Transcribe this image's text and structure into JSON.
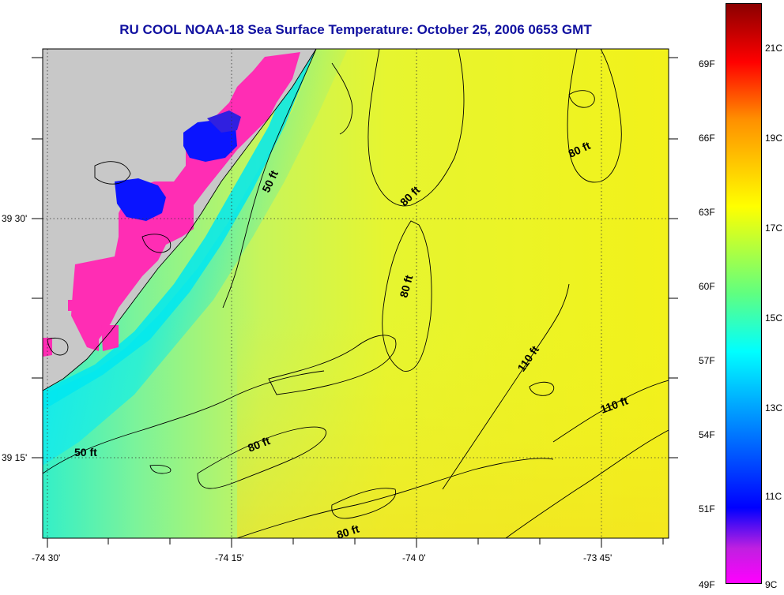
{
  "title": "RU COOL  NOAA-18  Sea Surface Temperature:  October 25, 2006 0653 GMT",
  "map": {
    "lat_labels": [
      {
        "text": "39 30'",
        "lat_min": 30
      },
      {
        "text": "39 15'",
        "lat_min": 15
      }
    ],
    "lon_labels": [
      {
        "text": "-74 30'",
        "lon_min": -30
      },
      {
        "text": "-74 15'",
        "lon_min": -15
      },
      {
        "text": "-74 0'",
        "lon_min": 0
      },
      {
        "text": "-73 45'",
        "lon_min": 15
      }
    ],
    "contour_labels": [
      {
        "text": "50 ft",
        "depth": 50
      },
      {
        "text": "50 ft",
        "depth": 50
      },
      {
        "text": "80 ft",
        "depth": 80
      },
      {
        "text": "80 ft",
        "depth": 80
      },
      {
        "text": "80 ft",
        "depth": 80
      },
      {
        "text": "80 ft",
        "depth": 80
      },
      {
        "text": "80 ft",
        "depth": 80
      },
      {
        "text": "110 ft",
        "depth": 110
      },
      {
        "text": "110 ft",
        "depth": 110
      }
    ],
    "colors": {
      "land": "#c8c8c8",
      "title": "#1010a0"
    }
  },
  "colorbar": {
    "fahrenheit_labels": [
      "69F",
      "66F",
      "63F",
      "60F",
      "57F",
      "54F",
      "51F",
      "49F"
    ],
    "celsius_labels": [
      "21C",
      "19C",
      "17C",
      "15C",
      "13C",
      "11C",
      "9C"
    ],
    "range_c": [
      9,
      22.5
    ],
    "stops": [
      "#ff00ff",
      "#0000ff",
      "#00ffff",
      "#ffff00",
      "#ff0000",
      "#8b0000"
    ]
  }
}
